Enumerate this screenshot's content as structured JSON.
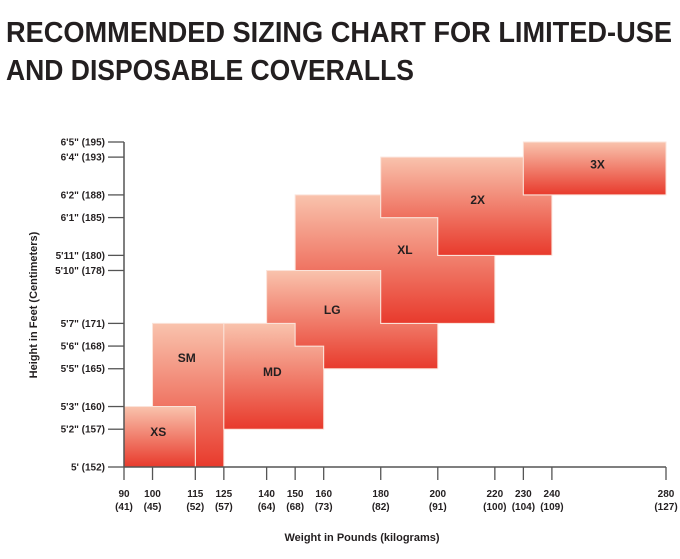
{
  "chart_data": {
    "type": "area",
    "title": [
      "RECOMMENDED SIZING CHART FOR LIMITED-USE",
      "AND DISPOSABLE COVERALLS"
    ],
    "xlabel": "Weight in Pounds (kilograms)",
    "ylabel": "Height in Feet (Centimeters)",
    "xlim": [
      90,
      280
    ],
    "ylim": [
      152,
      195
    ],
    "x_ticks": [
      {
        "value": 90,
        "label": "90",
        "sub": "(41)"
      },
      {
        "value": 100,
        "label": "100",
        "sub": "(45)"
      },
      {
        "value": 115,
        "label": "115",
        "sub": "(52)"
      },
      {
        "value": 125,
        "label": "125",
        "sub": "(57)"
      },
      {
        "value": 140,
        "label": "140",
        "sub": "(64)"
      },
      {
        "value": 150,
        "label": "150",
        "sub": "(68)"
      },
      {
        "value": 160,
        "label": "160",
        "sub": "(73)"
      },
      {
        "value": 180,
        "label": "180",
        "sub": "(82)"
      },
      {
        "value": 200,
        "label": "200",
        "sub": "(91)"
      },
      {
        "value": 220,
        "label": "220",
        "sub": "(100)"
      },
      {
        "value": 230,
        "label": "230",
        "sub": "(104)"
      },
      {
        "value": 240,
        "label": "240",
        "sub": "(109)"
      },
      {
        "value": 280,
        "label": "280",
        "sub": "(127)"
      }
    ],
    "y_ticks": [
      {
        "value": 195,
        "label": "6'5\" (195)"
      },
      {
        "value": 193,
        "label": "6'4\" (193)"
      },
      {
        "value": 188,
        "label": "6'2\" (188)"
      },
      {
        "value": 185,
        "label": "6'1\" (185)"
      },
      {
        "value": 180,
        "label": "5'11\" (180)"
      },
      {
        "value": 178,
        "label": "5'10\" (178)"
      },
      {
        "value": 171,
        "label": "5'7\" (171)"
      },
      {
        "value": 168,
        "label": "5'6\" (168)"
      },
      {
        "value": 165,
        "label": "5'5\" (165)"
      },
      {
        "value": 160,
        "label": "5'3\" (160)"
      },
      {
        "value": 157,
        "label": "5'2\" (157)"
      },
      {
        "value": 152,
        "label": "5' (152)"
      }
    ],
    "sizes": [
      {
        "name": "SM",
        "label_at": [
          112,
          166.4
        ],
        "region": [
          [
            100,
            160
          ],
          [
            100,
            171
          ],
          [
            125,
            171
          ],
          [
            125,
            152
          ],
          [
            115,
            152
          ],
          [
            115,
            160
          ]
        ]
      },
      {
        "name": "XS",
        "label_at": [
          102,
          156.6
        ],
        "region": [
          [
            90,
            152
          ],
          [
            90,
            160
          ],
          [
            115,
            160
          ],
          [
            115,
            152
          ]
        ]
      },
      {
        "name": "MD",
        "label_at": [
          142,
          164.6
        ],
        "region": [
          [
            125,
            157
          ],
          [
            125,
            171
          ],
          [
            150,
            171
          ],
          [
            150,
            168
          ],
          [
            160,
            168
          ],
          [
            160,
            157
          ]
        ]
      },
      {
        "name": "LG",
        "label_at": [
          163,
          172.8
        ],
        "region": [
          [
            140,
            171
          ],
          [
            150,
            171
          ],
          [
            150,
            168
          ],
          [
            160,
            168
          ],
          [
            160,
            165
          ],
          [
            200,
            165
          ],
          [
            200,
            171
          ],
          [
            180,
            171
          ],
          [
            180,
            178
          ],
          [
            140,
            178
          ]
        ]
      },
      {
        "name": "XL",
        "label_at": [
          188.5,
          180.7
        ],
        "region": [
          [
            150,
            178
          ],
          [
            150,
            188
          ],
          [
            180,
            188
          ],
          [
            180,
            185
          ],
          [
            200,
            185
          ],
          [
            200,
            180
          ],
          [
            220,
            180
          ],
          [
            220,
            171
          ],
          [
            180,
            171
          ],
          [
            180,
            178
          ]
        ]
      },
      {
        "name": "2X",
        "label_at": [
          214,
          187.3
        ],
        "region": [
          [
            180,
            185
          ],
          [
            180,
            193
          ],
          [
            230,
            193
          ],
          [
            230,
            188
          ],
          [
            240,
            188
          ],
          [
            240,
            180
          ],
          [
            200,
            180
          ],
          [
            200,
            185
          ]
        ]
      },
      {
        "name": "3X",
        "label_at": [
          256,
          192
        ],
        "region": [
          [
            230,
            188
          ],
          [
            230,
            195
          ],
          [
            280,
            195
          ],
          [
            280,
            188
          ]
        ]
      }
    ],
    "colors": {
      "fill_top": "#f9c3ad",
      "fill_bottom": "#e83a2c",
      "axis": "#555555",
      "text": "#231f20"
    },
    "grid": false
  }
}
